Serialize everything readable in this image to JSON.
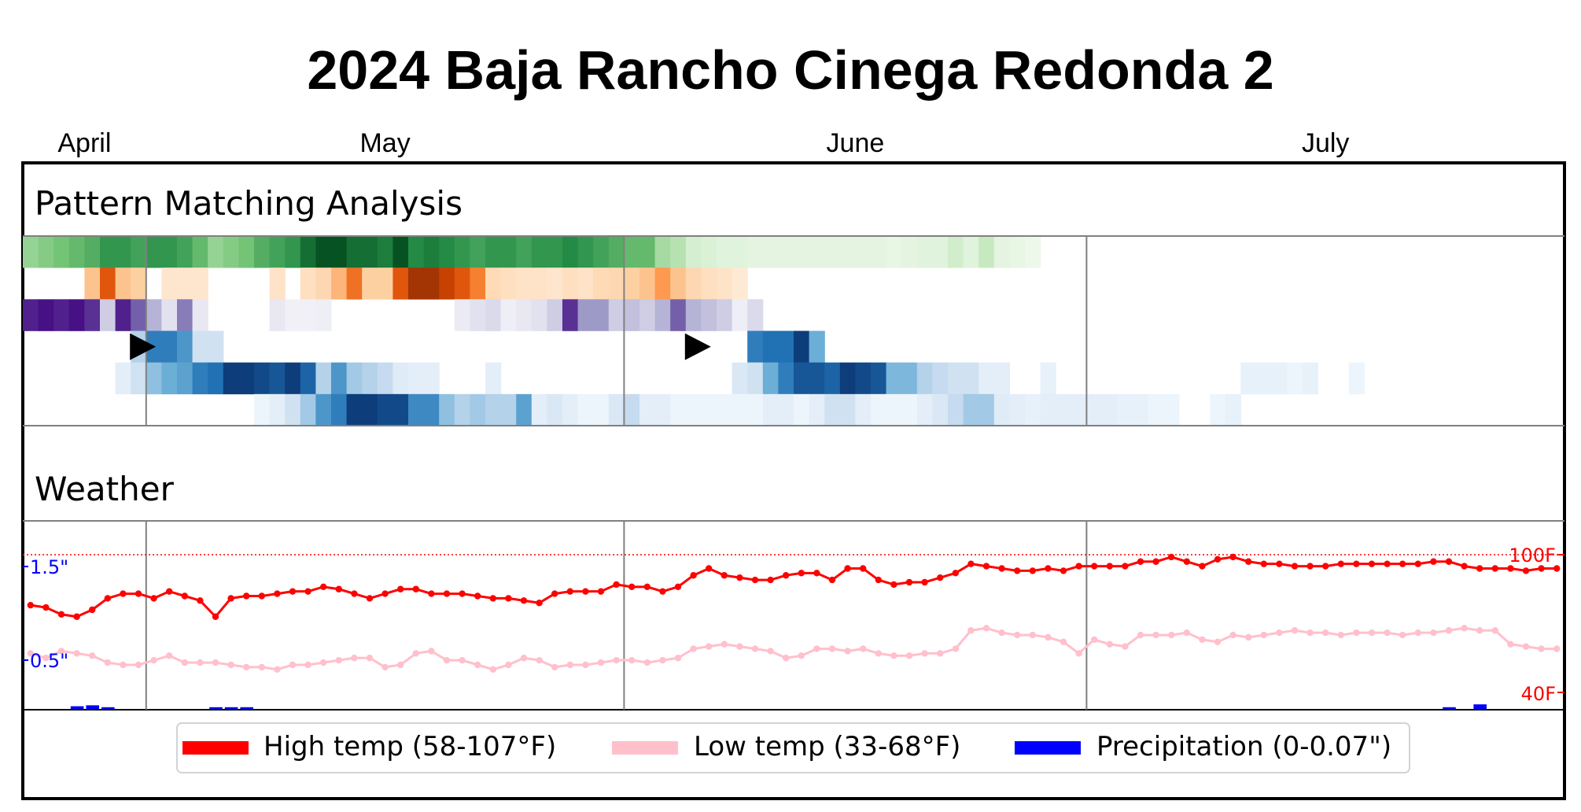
{
  "chart_data": {
    "type": "heatmap+line",
    "title": "2024 Baja Rancho Cinega Redonda 2",
    "months": [
      "April",
      "May",
      "June",
      "July"
    ],
    "panels": {
      "pattern": "Pattern Matching Analysis",
      "weather": "Weather"
    },
    "legend": [
      {
        "label": "High temp (58-107°F)",
        "color": "#ff0000"
      },
      {
        "label": "Low temp (33-68°F)",
        "color": "#ffc0cb"
      },
      {
        "label": "Precipitation (0-0.07\")",
        "color": "#0000ff"
      }
    ],
    "precip_ticks": [
      "1.5\"",
      "0.5\""
    ],
    "temp_ticks": [
      "100F",
      "40F"
    ],
    "temp_range": [
      40,
      100
    ],
    "precip_range": [
      0,
      2
    ],
    "start_date": "2024-04-23",
    "days": 100,
    "pattern_rows": [
      {
        "cmap": "greens",
        "intensity": [
          0.4,
          0.45,
          0.5,
          0.55,
          0.6,
          0.7,
          0.7,
          0.65,
          0.7,
          0.7,
          0.65,
          0.55,
          0.4,
          0.45,
          0.5,
          0.6,
          0.65,
          0.7,
          0.85,
          0.95,
          0.95,
          0.85,
          0.85,
          0.8,
          0.95,
          0.75,
          0.8,
          0.75,
          0.7,
          0.65,
          0.7,
          0.7,
          0.65,
          0.7,
          0.7,
          0.75,
          0.7,
          0.65,
          0.6,
          0.55,
          0.55,
          0.35,
          0.3,
          0.18,
          0.15,
          0.12,
          0.12,
          0.1,
          0.1,
          0.1,
          0.1,
          0.1,
          0.1,
          0.1,
          0.1,
          0.1,
          0.08,
          0.1,
          0.12,
          0.12,
          0.2,
          0.12,
          0.25,
          0.1,
          0.08,
          0.05,
          0,
          0,
          0,
          0,
          0,
          0,
          0,
          0,
          0,
          0,
          0,
          0,
          0,
          0,
          0,
          0,
          0,
          0,
          0,
          0,
          0,
          0,
          0,
          0,
          0,
          0,
          0,
          0,
          0,
          0,
          0,
          0,
          0,
          0
        ]
      },
      {
        "cmap": "oranges",
        "intensity": [
          0,
          0,
          0,
          0,
          0.3,
          0.7,
          0.3,
          0.25,
          0,
          0.1,
          0.1,
          0.1,
          0,
          0,
          0,
          0,
          0.12,
          0,
          0.15,
          0.2,
          0.35,
          0.6,
          0.25,
          0.25,
          0.7,
          0.9,
          0.9,
          0.8,
          0.7,
          0.55,
          0.18,
          0.15,
          0.12,
          0.12,
          0.1,
          0.15,
          0.12,
          0.18,
          0.2,
          0.25,
          0.3,
          0.45,
          0.3,
          0.2,
          0.15,
          0.12,
          0.08,
          0,
          0,
          0,
          0,
          0,
          0,
          0,
          0,
          0,
          0,
          0,
          0,
          0,
          0,
          0,
          0,
          0,
          0,
          0,
          0,
          0,
          0,
          0,
          0,
          0,
          0,
          0,
          0,
          0,
          0,
          0,
          0,
          0,
          0,
          0,
          0,
          0,
          0,
          0,
          0,
          0,
          0,
          0,
          0,
          0,
          0,
          0,
          0,
          0,
          0,
          0,
          0,
          0
        ]
      },
      {
        "cmap": "purples",
        "intensity": [
          0.9,
          0.95,
          0.9,
          0.95,
          0.85,
          0.3,
          0.9,
          0.7,
          0.4,
          0.2,
          0.6,
          0.15,
          0,
          0,
          0,
          0,
          0.15,
          0.08,
          0.08,
          0.1,
          0,
          0,
          0,
          0,
          0,
          0,
          0,
          0,
          0.12,
          0.2,
          0.25,
          0.1,
          0.15,
          0.2,
          0.3,
          0.85,
          0.5,
          0.5,
          0.3,
          0.35,
          0.3,
          0.4,
          0.7,
          0.4,
          0.35,
          0.3,
          0.1,
          0.25,
          0,
          0,
          0,
          0,
          0,
          0,
          0,
          0,
          0,
          0,
          0,
          0,
          0,
          0,
          0,
          0,
          0,
          0,
          0,
          0,
          0,
          0,
          0,
          0,
          0,
          0,
          0,
          0,
          0,
          0,
          0,
          0,
          0,
          0,
          0,
          0,
          0,
          0,
          0,
          0,
          0,
          0,
          0,
          0,
          0,
          0,
          0,
          0,
          0,
          0,
          0,
          0
        ]
      },
      {
        "cmap": "blues",
        "intensity": [
          0,
          0,
          0,
          0,
          0,
          0,
          0,
          0.3,
          0.7,
          0.7,
          0.6,
          0.2,
          0.2,
          0,
          0,
          0,
          0,
          0,
          0,
          0,
          0,
          0,
          0,
          0,
          0,
          0,
          0,
          0,
          0,
          0,
          0,
          0,
          0,
          0,
          0,
          0,
          0,
          0,
          0,
          0,
          0,
          0,
          0,
          0,
          0,
          0,
          0,
          0.7,
          0.75,
          0.75,
          0.95,
          0.5,
          0,
          0,
          0,
          0,
          0,
          0,
          0,
          0,
          0,
          0,
          0,
          0,
          0,
          0,
          0,
          0,
          0,
          0,
          0,
          0,
          0,
          0,
          0,
          0,
          0,
          0,
          0,
          0,
          0,
          0,
          0,
          0,
          0,
          0,
          0,
          0,
          0,
          0,
          0,
          0,
          0,
          0,
          0,
          0,
          0,
          0,
          0,
          0
        ]
      },
      {
        "cmap": "blues",
        "intensity": [
          0,
          0,
          0,
          0,
          0,
          0,
          0.1,
          0.2,
          0.4,
          0.5,
          0.55,
          0.7,
          0.75,
          0.95,
          0.95,
          0.9,
          0.85,
          0.95,
          0.8,
          0.3,
          0.6,
          0.35,
          0.3,
          0.25,
          0.12,
          0.1,
          0.1,
          0,
          0,
          0,
          0.1,
          0,
          0,
          0,
          0,
          0,
          0,
          0,
          0,
          0,
          0,
          0,
          0,
          0,
          0,
          0,
          0.15,
          0.2,
          0.5,
          0.7,
          0.85,
          0.85,
          0.8,
          0.95,
          0.9,
          0.85,
          0.45,
          0.45,
          0.3,
          0.25,
          0.2,
          0.2,
          0.1,
          0.1,
          0,
          0,
          0.08,
          0,
          0,
          0,
          0,
          0,
          0,
          0,
          0,
          0,
          0,
          0,
          0,
          0.08,
          0.08,
          0.08,
          0.05,
          0.08,
          0,
          0,
          0.05,
          0,
          0,
          0,
          0,
          0,
          0,
          0,
          0,
          0,
          0,
          0,
          0,
          0
        ]
      },
      {
        "cmap": "blues",
        "intensity": [
          0,
          0,
          0,
          0,
          0,
          0,
          0,
          0,
          0,
          0,
          0,
          0,
          0,
          0,
          0,
          0.05,
          0.1,
          0.2,
          0.35,
          0.6,
          0.7,
          0.95,
          0.95,
          0.9,
          0.9,
          0.65,
          0.65,
          0.4,
          0.3,
          0.35,
          0.3,
          0.3,
          0.55,
          0.1,
          0.15,
          0.1,
          0.05,
          0.05,
          0.15,
          0.25,
          0.1,
          0.1,
          0.05,
          0.05,
          0.05,
          0.05,
          0.05,
          0.05,
          0.1,
          0.1,
          0.05,
          0.1,
          0.2,
          0.2,
          0.1,
          0.05,
          0.05,
          0.05,
          0.1,
          0.15,
          0.25,
          0.35,
          0.35,
          0.12,
          0.1,
          0.08,
          0.1,
          0.1,
          0.1,
          0.1,
          0.1,
          0.08,
          0.08,
          0.05,
          0.05,
          0,
          0,
          0.05,
          0.08,
          0,
          0,
          0,
          0,
          0,
          0,
          0,
          0,
          0,
          0,
          0,
          0,
          0,
          0,
          0,
          0,
          0,
          0,
          0,
          0,
          0
        ]
      }
    ],
    "pattern_markers": [
      {
        "row": 3,
        "day": 7
      },
      {
        "row": 3,
        "day": 43
      }
    ],
    "pattern_dividers": [
      8,
      39,
      69
    ],
    "high_temp": [
      78,
      77,
      74,
      73,
      76,
      81,
      83,
      83,
      81,
      84,
      82,
      80,
      73,
      81,
      82,
      82,
      83,
      84,
      84,
      86,
      85,
      83,
      81,
      83,
      85,
      85,
      83,
      83,
      83,
      82,
      81,
      81,
      80,
      79,
      83,
      84,
      84,
      84,
      87,
      86,
      86,
      84,
      86,
      91,
      94,
      91,
      90,
      89,
      89,
      91,
      92,
      92,
      89,
      94,
      94,
      89,
      87,
      88,
      88,
      90,
      92,
      96,
      95,
      94,
      93,
      93,
      94,
      93,
      95,
      95,
      95,
      95,
      97,
      97,
      99,
      97,
      95,
      98,
      99,
      97,
      96,
      96,
      95,
      95,
      95,
      96,
      96,
      96,
      96,
      96,
      96,
      97,
      97,
      95,
      94,
      94,
      94,
      93,
      94,
      94
    ],
    "low_temp": [
      57,
      55,
      58,
      57,
      56,
      53,
      52,
      52,
      54,
      56,
      53,
      53,
      53,
      52,
      51,
      51,
      50,
      52,
      52,
      53,
      54,
      55,
      55,
      51,
      52,
      57,
      58,
      54,
      54,
      52,
      50,
      52,
      55,
      54,
      51,
      52,
      52,
      53,
      54,
      54,
      53,
      54,
      55,
      59,
      60,
      61,
      60,
      59,
      58,
      55,
      56,
      59,
      59,
      58,
      59,
      57,
      56,
      56,
      57,
      57,
      59,
      67,
      68,
      66,
      65,
      65,
      64,
      62,
      57,
      63,
      61,
      60,
      65,
      65,
      65,
      66,
      63,
      62,
      65,
      64,
      65,
      66,
      67,
      66,
      66,
      65,
      66,
      66,
      66,
      65,
      66,
      66,
      67,
      68,
      67,
      67,
      61,
      60,
      59,
      59
    ],
    "precip": [
      0,
      0,
      0,
      0.02,
      0.03,
      0.01,
      0,
      0,
      0,
      0,
      0,
      0,
      0.01,
      0.01,
      0.01,
      0,
      0,
      0,
      0,
      0,
      0,
      0,
      0,
      0,
      0,
      0,
      0,
      0,
      0,
      0,
      0,
      0,
      0,
      0,
      0,
      0,
      0,
      0,
      0,
      0,
      0,
      0,
      0,
      0,
      0,
      0,
      0,
      0,
      0,
      0,
      0,
      0,
      0,
      0,
      0,
      0,
      0,
      0,
      0,
      0,
      0,
      0,
      0,
      0,
      0,
      0,
      0,
      0,
      0,
      0,
      0,
      0,
      0,
      0,
      0,
      0,
      0,
      0,
      0,
      0,
      0,
      0,
      0,
      0,
      0,
      0,
      0,
      0,
      0,
      0,
      0,
      0,
      0.01,
      0,
      0.04,
      0,
      0,
      0,
      0,
      0
    ]
  }
}
